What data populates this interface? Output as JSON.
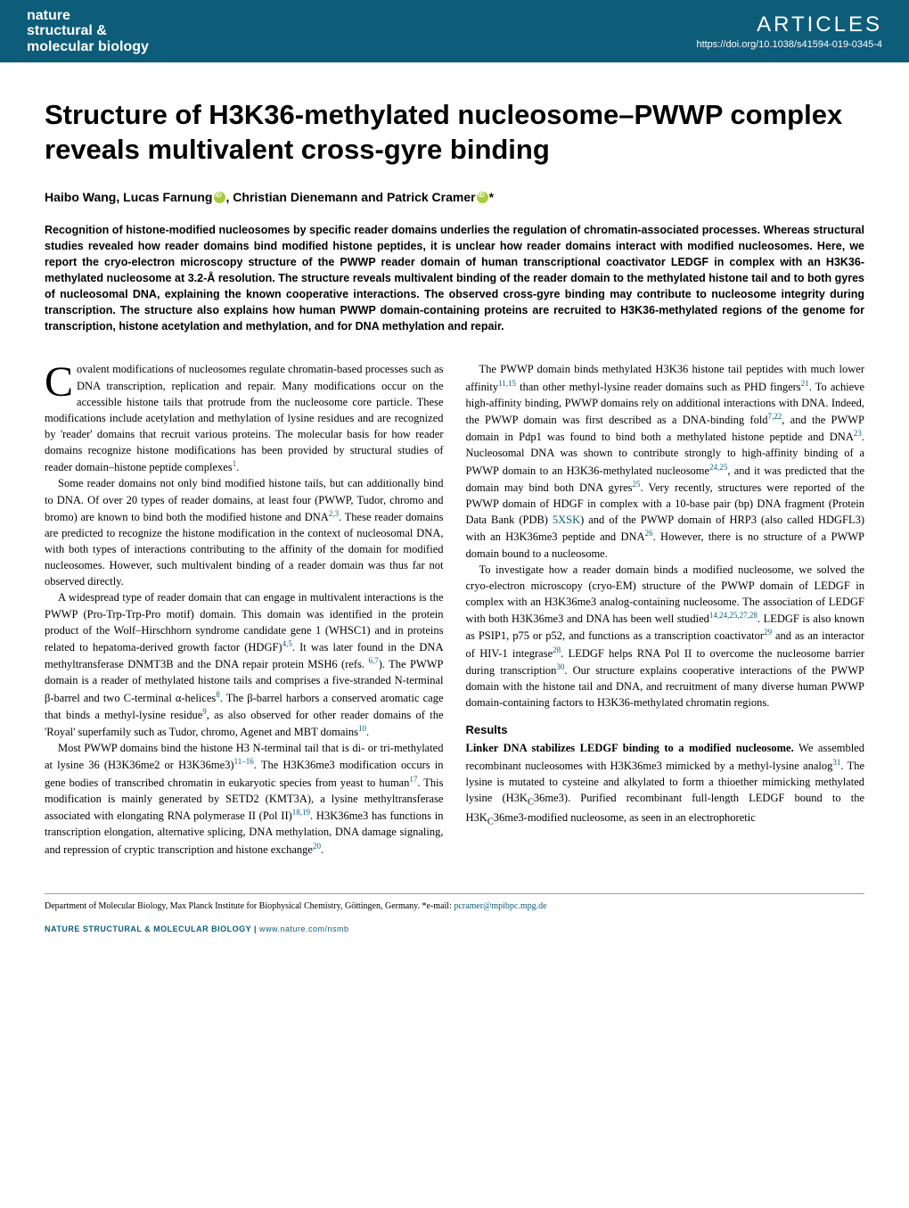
{
  "header": {
    "journal_line1": "nature",
    "journal_line2": "structural &",
    "journal_line3": "molecular biology",
    "section_label": "ARTICLES",
    "doi": "https://doi.org/10.1038/s41594-019-0345-4",
    "header_bg": "#0d5c7a",
    "header_text_color": "#ffffff"
  },
  "title": "Structure of H3K36-methylated nucleosome–PWWP complex reveals multivalent cross-gyre binding",
  "authors": {
    "a1": "Haibo Wang, Lucas Farnung",
    "a2": ", Christian Dienemann and Patrick Cramer",
    "corr": "*"
  },
  "abstract": "Recognition of histone-modified nucleosomes by specific reader domains underlies the regulation of chromatin-associated processes. Whereas structural studies revealed how reader domains bind modified histone peptides, it is unclear how reader domains interact with modified nucleosomes. Here, we report the cryo-electron microscopy structure of the PWWP reader domain of human transcriptional coactivator LEDGF in complex with an H3K36-methylated nucleosome at 3.2-Å resolution. The structure reveals multivalent binding of the reader domain to the methylated histone tail and to both gyres of nucleosomal DNA, explaining the known cooperative interactions. The observed cross-gyre binding may contribute to nucleosome integrity during transcription. The structure also explains how human PWWP domain-containing proteins are recruited to H3K36-methylated regions of the genome for transcription, histone acetylation and methylation, and for DNA methylation and repair.",
  "body": {
    "p1a": "ovalent modifications of nucleosomes regulate chromatin-based processes such as DNA transcription, replication and repair. Many modifications occur on the accessible histone tails that protrude from the nucleosome core particle. These modifications include acetylation and methylation of lysine residues and are recognized by 'reader' domains that recruit various proteins. The molecular basis for how reader domains recognize histone modifications has been provided by structural studies of reader domain–histone peptide complexes",
    "p1ref": "1",
    "p1b": ".",
    "p2a": "Some reader domains not only bind modified histone tails, but can additionally bind to DNA. Of over 20 types of reader domains, at least four (PWWP, Tudor, chromo and bromo) are known to bind both the modified histone and DNA",
    "p2ref": "2,3",
    "p2b": ". These reader domains are predicted to recognize the histone modification in the context of nucleosomal DNA, with both types of interactions contributing to the affinity of the domain for modified nucleosomes. However, such multivalent binding of a reader domain was thus far not observed directly.",
    "p3a": "A widespread type of reader domain that can engage in multivalent interactions is the PWWP (Pro-Trp-Trp-Pro motif) domain. This domain was identified in the protein product of the Wolf–Hirschhorn syndrome candidate gene 1 (WHSC1) and in proteins related to hepatoma-derived growth factor (HDGF)",
    "p3ref1": "4,5",
    "p3b": ". It was later found in the DNA methyltransferase DNMT3B and the DNA repair protein MSH6 (refs. ",
    "p3ref2": "6,7",
    "p3c": "). The PWWP domain is a reader of methylated histone tails and comprises a five-stranded N-terminal β-barrel and two C-terminal α-helices",
    "p3ref3": "8",
    "p3d": ". The β-barrel harbors a conserved aromatic cage that binds a methyl-lysine residue",
    "p3ref4": "9",
    "p3e": ", as also observed for other reader domains of the 'Royal' superfamily such as Tudor, chromo, Agenet and MBT domains",
    "p3ref5": "10",
    "p3f": ".",
    "p4a": "Most PWWP domains bind the histone H3 N-terminal tail that is di- or tri-methylated at lysine 36 (H3K36me2 or H3K36me3)",
    "p4ref1": "11–16",
    "p4b": ". The H3K36me3 modification occurs in gene bodies of transcribed chromatin in eukaryotic species from yeast to human",
    "p4ref2": "17",
    "p4c": ". This modification is mainly generated by SETD2 (KMT3A), a lysine methyltransferase associated with elongating RNA polymerase II (Pol II)",
    "p4ref3": "18,19",
    "p4d": ". H3K36me3 has functions in transcription elongation, alternative splicing, DNA methylation, DNA damage signaling, and repression of cryptic transcription and histone exchange",
    "p4ref4": "20",
    "p4e": ".",
    "p5a": "The PWWP domain binds methylated H3K36 histone tail peptides with much lower affinity",
    "p5ref1": "11,15",
    "p5b": " than other methyl-lysine reader domains such as PHD fingers",
    "p5ref2": "21",
    "p5c": ". To achieve high-affinity binding, PWWP domains rely on additional interactions with DNA. Indeed, the PWWP domain was first described as a DNA-binding fold",
    "p5ref3": "7,22",
    "p5d": ", and the PWWP domain in Pdp1 was found to bind both a methylated histone peptide and DNA",
    "p5ref4": "23",
    "p5e": ". Nucleosomal DNA was shown to contribute strongly to high-affinity binding of a PWWP domain to an H3K36-methylated nucleosome",
    "p5ref5": "24,25",
    "p5f": ", and it was predicted that the domain may bind both DNA gyres",
    "p5ref6": "25",
    "p5g": ". Very recently, structures were reported of the PWWP domain of HDGF in complex with a 10-base pair (bp) DNA fragment (Protein Data Bank (PDB) ",
    "p5pdb": "5XSK",
    "p5h": ") and of the PWWP domain of HRP3 (also called HDGFL3) with an H3K36me3 peptide and DNA",
    "p5ref7": "26",
    "p5i": ". However, there is no structure of a PWWP domain bound to a nucleosome.",
    "p6a": "To investigate how a reader domain binds a modified nucleosome, we solved the cryo-electron microscopy (cryo-EM) structure of the PWWP domain of LEDGF in complex with an H3K36me3 analog-containing nucleosome. The association of LEDGF with both H3K36me3 and DNA has been well studied",
    "p6ref1": "14,24,25,27,28",
    "p6b": ". LEDGF is also known as PSIP1, p75 or p52, and functions as a transcription coactivator",
    "p6ref2": "29",
    "p6c": " and as an interactor of HIV-1 integrase",
    "p6ref3": "28",
    "p6d": ". LEDGF helps RNA Pol II to overcome the nucleosome barrier during transcription",
    "p6ref4": "30",
    "p6e": ". Our structure explains cooperative interactions of the PWWP domain with the histone tail and DNA, and recruitment of many diverse human PWWP domain-containing factors to H3K36-methylated chromatin regions.",
    "results_heading": "Results",
    "p7heading": "Linker DNA stabilizes LEDGF binding to a modified nucleosome.",
    "p7a": " We assembled recombinant nucleosomes with H3K36me3 mimicked by a methyl-lysine analog",
    "p7ref1": "31",
    "p7b": ". The lysine is mutated to cysteine and alkylated to form a thioether mimicking methylated lysine (H3K",
    "p7sub1": "C",
    "p7c": "36me3). Purified recombinant full-length LEDGF bound to the H3K",
    "p7sub2": "C",
    "p7d": "36me3-modified nucleosome, as seen in an electrophoretic"
  },
  "footer": {
    "affiliation": "Department of Molecular Biology, Max Planck Institute for Biophysical Chemistry, Göttingen, Germany. *e-mail: ",
    "email": "pcramer@mpibpc.mpg.de",
    "journal_footer": "NATURE STRUCTURAL & MOLECULAR BIOLOGY",
    "separator": " | ",
    "url": "www.nature.com/nsmb"
  },
  "colors": {
    "accent": "#0d5c7a",
    "orcid": "#a6ce39",
    "text": "#000000",
    "bg": "#ffffff",
    "border": "#999999"
  },
  "typography": {
    "title_fontsize": 31,
    "abstract_fontsize": 12.5,
    "body_fontsize": 12.5,
    "authors_fontsize": 14,
    "footer_fontsize": 9,
    "affiliation_fontsize": 10
  }
}
